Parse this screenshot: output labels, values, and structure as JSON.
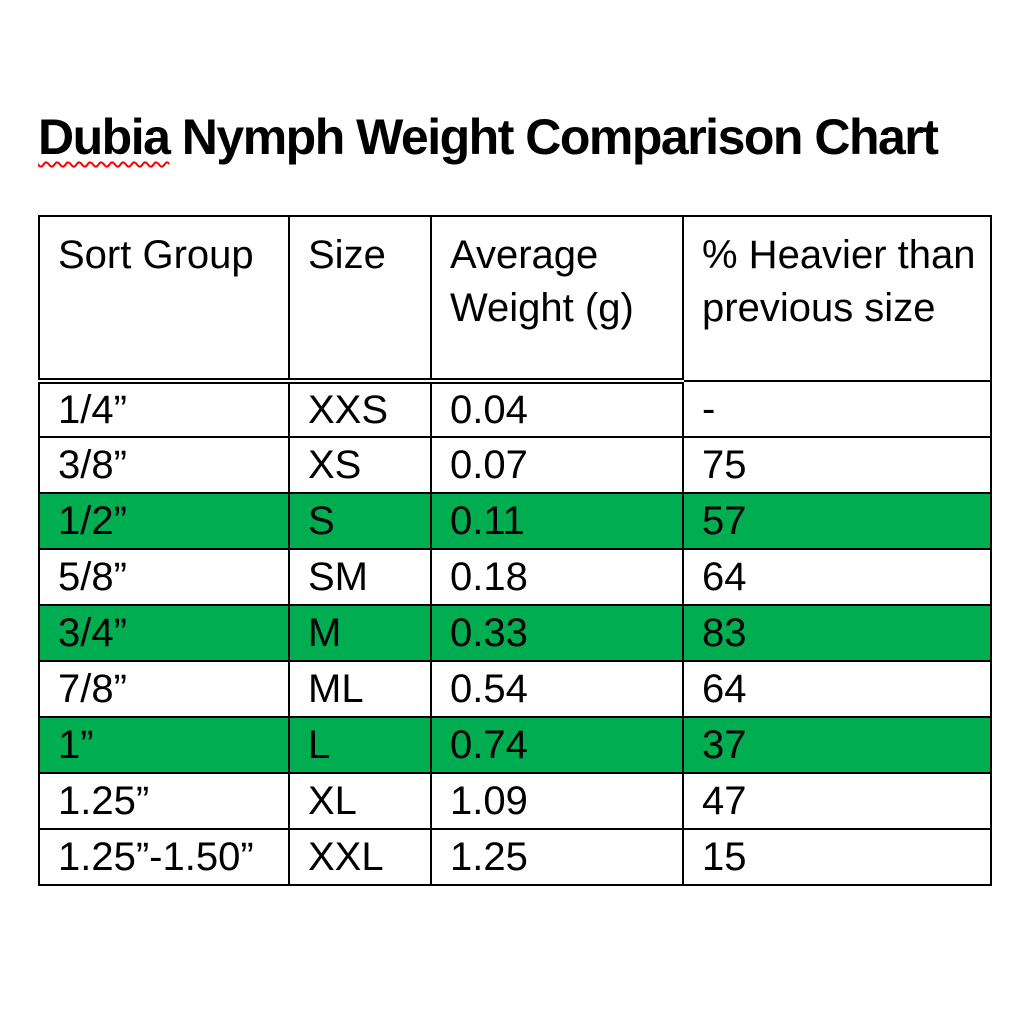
{
  "title": {
    "misspelled_word": "Dubia",
    "rest": " Nymph Weight Comparison Chart",
    "squiggle_color": "#ff0000"
  },
  "table": {
    "highlight_color": "#00ad50",
    "border_color": "#000000",
    "columns": [
      "Sort Group",
      "Size",
      "Average Weight (g)",
      "% Heavier than previous size"
    ],
    "rows": [
      {
        "sort_group": "1/4”",
        "size": "XXS",
        "avg_weight": "0.04",
        "pct_heavier": "-",
        "highlighted": false
      },
      {
        "sort_group": "3/8”",
        "size": "XS",
        "avg_weight": "0.07",
        "pct_heavier": "75",
        "highlighted": false
      },
      {
        "sort_group": "1/2”",
        "size": "S",
        "avg_weight": "0.11",
        "pct_heavier": "57",
        "highlighted": true
      },
      {
        "sort_group": "5/8”",
        "size": "SM",
        "avg_weight": "0.18",
        "pct_heavier": "64",
        "highlighted": false
      },
      {
        "sort_group": "3/4”",
        "size": "M",
        "avg_weight": "0.33",
        "pct_heavier": "83",
        "highlighted": true
      },
      {
        "sort_group": "7/8”",
        "size": "ML",
        "avg_weight": "0.54",
        "pct_heavier": "64",
        "highlighted": false
      },
      {
        "sort_group": "1”",
        "size": "L",
        "avg_weight": "0.74",
        "pct_heavier": "37",
        "highlighted": true
      },
      {
        "sort_group": "1.25”",
        "size": "XL",
        "avg_weight": "1.09",
        "pct_heavier": "47",
        "highlighted": false
      },
      {
        "sort_group": "1.25”-1.50”",
        "size": "XXL",
        "avg_weight": "1.25",
        "pct_heavier": "15",
        "highlighted": false
      }
    ]
  }
}
